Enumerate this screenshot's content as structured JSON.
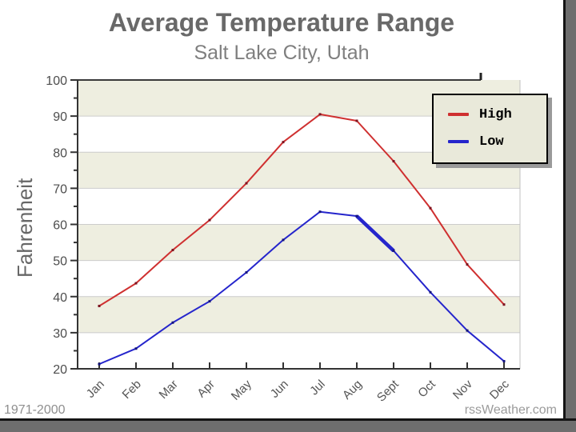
{
  "header": {
    "title": "Average Temperature Range",
    "subtitle": "Salt Lake City, Utah"
  },
  "footer": {
    "period": "1971-2000",
    "source": "rssWeather.com"
  },
  "colors": {
    "band_beige": "#eeeee0",
    "plot_white": "#ffffff",
    "grid": "#cccccc",
    "axis": "#333333",
    "tick_label": "#4d4d4d",
    "legend_bg": "#e9e9da",
    "window_border_gray": "#6e6e6e",
    "window_border_black": "#141414"
  },
  "chart_data": {
    "type": "line",
    "title": "Average Temperature Range",
    "subtitle": "Salt Lake City, Utah",
    "xlabel": "",
    "ylabel": "Fahrenheit",
    "ylim": [
      20,
      100
    ],
    "y_ticks": [
      20,
      30,
      40,
      50,
      60,
      70,
      80,
      90,
      100
    ],
    "y_minor_step": 5,
    "grid": "horizontal",
    "background_bands": "alternating beige/white every 10 degrees",
    "legend_position": "top-right",
    "categories": [
      "Jan",
      "Feb",
      "Mar",
      "Apr",
      "May",
      "Jun",
      "Jul",
      "Aug",
      "Sept",
      "Oct",
      "Nov",
      "Dec"
    ],
    "series": [
      {
        "name": "High",
        "color": "#cf3030",
        "marker_color": "#7d1420",
        "values": [
          37.4,
          43.7,
          52.9,
          61.2,
          71.4,
          82.8,
          90.5,
          88.7,
          77.5,
          64.5,
          48.9,
          37.8
        ]
      },
      {
        "name": "Low",
        "color": "#2525cc",
        "marker_color": "#14147d",
        "values": [
          21.3,
          25.6,
          32.8,
          38.7,
          46.7,
          55.7,
          63.5,
          62.3,
          52.7,
          41.2,
          30.6,
          22.1
        ],
        "bold_segment": [
          7,
          8
        ]
      }
    ]
  }
}
